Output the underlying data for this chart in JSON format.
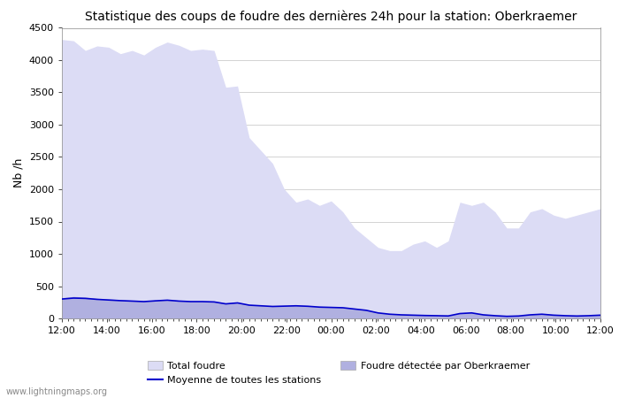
{
  "title": "Statistique des coups de foudre des dernières 24h pour la station: Oberkraemer",
  "ylabel": "Nb /h",
  "ylim": [
    0,
    4500
  ],
  "yticks": [
    0,
    500,
    1000,
    1500,
    2000,
    2500,
    3000,
    3500,
    4000,
    4500
  ],
  "xtick_labels": [
    "12:00",
    "14:00",
    "16:00",
    "18:00",
    "20:00",
    "22:00",
    "00:00",
    "02:00",
    "04:00",
    "06:00",
    "08:00",
    "10:00",
    "12:00"
  ],
  "bg_color": "#ffffff",
  "grid_color": "#cccccc",
  "fill_total_color": "#dcdcf5",
  "fill_station_color": "#b0b0e0",
  "line_color": "#0000cc",
  "watermark": "www.lightningmaps.org",
  "total_foudre": [
    4320,
    4300,
    4150,
    4220,
    4200,
    4100,
    4150,
    4080,
    4200,
    4280,
    4230,
    4150,
    4170,
    4150,
    3580,
    3600,
    2800,
    2600,
    2400,
    2000,
    1800,
    1850,
    1750,
    1820,
    1650,
    1400,
    1250,
    1100,
    1050,
    1050,
    1150,
    1200,
    1100,
    1200,
    1800,
    1750,
    1800,
    1650,
    1400,
    1400,
    1650,
    1700,
    1600,
    1550,
    1600,
    1650,
    1700
  ],
  "station_foudre": [
    320,
    340,
    330,
    310,
    300,
    290,
    280,
    270,
    285,
    295,
    280,
    270,
    270,
    260,
    230,
    250,
    210,
    200,
    190,
    195,
    200,
    195,
    180,
    175,
    170,
    150,
    130,
    90,
    70,
    60,
    55,
    50,
    45,
    40,
    80,
    90,
    60,
    45,
    35,
    40,
    60,
    70,
    55,
    45,
    40,
    45,
    55
  ],
  "mean_all": [
    300,
    315,
    310,
    295,
    285,
    275,
    268,
    260,
    272,
    282,
    268,
    260,
    260,
    255,
    225,
    240,
    205,
    195,
    185,
    190,
    195,
    188,
    175,
    170,
    165,
    145,
    125,
    85,
    65,
    55,
    50,
    45,
    42,
    38,
    75,
    85,
    55,
    42,
    32,
    37,
    55,
    65,
    50,
    42,
    37,
    42,
    50
  ]
}
